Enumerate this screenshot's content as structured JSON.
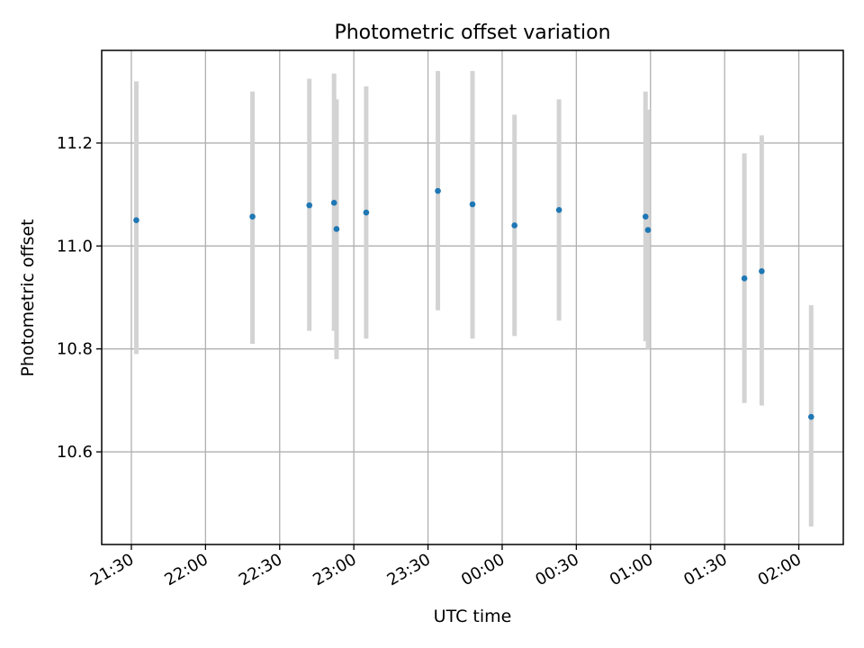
{
  "chart_data": {
    "type": "scatter",
    "title": "Photometric offset variation",
    "xlabel": "UTC time",
    "ylabel": "Photometric offset",
    "x_ticks": [
      "21:30",
      "22:00",
      "22:30",
      "23:00",
      "23:30",
      "00:00",
      "00:30",
      "01:00",
      "01:30",
      "02:00"
    ],
    "y_ticks": [
      "10.6",
      "10.8",
      "11.0",
      "11.2"
    ],
    "xlim": [
      "21:18",
      "02:18"
    ],
    "ylim": [
      10.42,
      11.38
    ],
    "grid": true,
    "colors": {
      "point": "#1f77b4",
      "errorbar": "#d3d3d3"
    },
    "series": [
      {
        "points": [
          {
            "x": "21:32",
            "y": 11.05,
            "y_low": 10.79,
            "y_high": 11.32
          },
          {
            "x": "22:19",
            "y": 11.057,
            "y_low": 10.81,
            "y_high": 11.3
          },
          {
            "x": "22:42",
            "y": 11.079,
            "y_low": 10.835,
            "y_high": 11.325
          },
          {
            "x": "22:52",
            "y": 11.084,
            "y_low": 10.835,
            "y_high": 11.335
          },
          {
            "x": "22:53",
            "y": 11.033,
            "y_low": 10.78,
            "y_high": 11.285
          },
          {
            "x": "23:05",
            "y": 11.065,
            "y_low": 10.82,
            "y_high": 11.31
          },
          {
            "x": "23:34",
            "y": 11.107,
            "y_low": 10.875,
            "y_high": 11.34
          },
          {
            "x": "23:48",
            "y": 11.081,
            "y_low": 10.82,
            "y_high": 11.34
          },
          {
            "x": "00:05",
            "y": 11.04,
            "y_low": 10.825,
            "y_high": 11.255
          },
          {
            "x": "00:23",
            "y": 11.07,
            "y_low": 10.855,
            "y_high": 11.285
          },
          {
            "x": "00:58",
            "y": 11.057,
            "y_low": 10.815,
            "y_high": 11.3
          },
          {
            "x": "00:59",
            "y": 11.031,
            "y_low": 10.8,
            "y_high": 11.265
          },
          {
            "x": "01:38",
            "y": 10.937,
            "y_low": 10.695,
            "y_high": 11.18
          },
          {
            "x": "01:45",
            "y": 10.951,
            "y_low": 10.69,
            "y_high": 11.215
          },
          {
            "x": "02:05",
            "y": 10.668,
            "y_low": 10.455,
            "y_high": 10.885
          }
        ]
      }
    ]
  }
}
